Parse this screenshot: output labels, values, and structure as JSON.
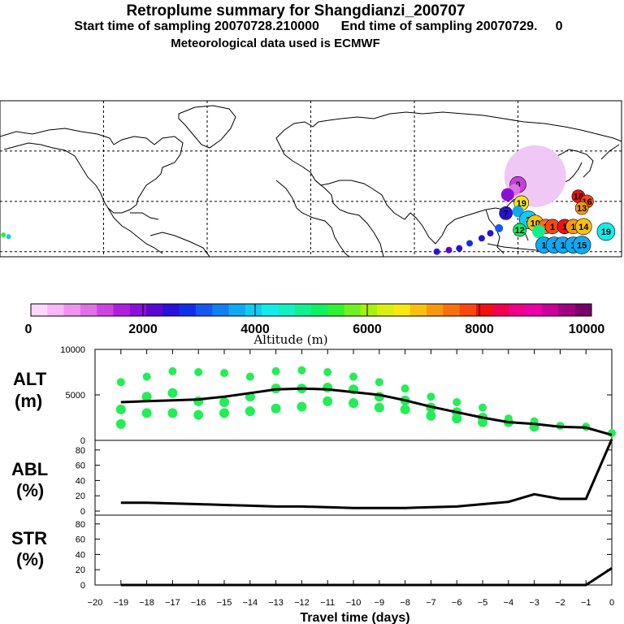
{
  "header": {
    "title": "Retroplume summary for Shangdianzi_200707",
    "line2": "Start time of sampling 20070728.210000      End time of sampling 20070729.     0",
    "line3": "Meteorological data used is ECMWF"
  },
  "colorbar": {
    "ticks": [
      "0",
      "2000",
      "4000",
      "6000",
      "8000",
      "10000"
    ],
    "label": "Altitude (m)",
    "colors": [
      "#fbd8fb",
      "#f6b8f6",
      "#ee94ee",
      "#e070e8",
      "#cc44e0",
      "#b020dc",
      "#8a10d8",
      "#5a08d0",
      "#2a10d8",
      "#1030e8",
      "#1458f0",
      "#1080f0",
      "#10a8f0",
      "#10ccf0",
      "#10ecec",
      "#10f0c0",
      "#10f090",
      "#10f060",
      "#30f030",
      "#70f020",
      "#a8f010",
      "#d8f010",
      "#f8e810",
      "#f8c010",
      "#f89810",
      "#f87010",
      "#f84810",
      "#f01010",
      "#f00050",
      "#f00088",
      "#e800a8",
      "#c80098",
      "#a00080",
      "#780068"
    ]
  },
  "map": {
    "circles": [
      {
        "lon": 130,
        "lat": 45,
        "r": 38,
        "color": "#f0c8f6",
        "label": ""
      },
      {
        "lon": 120,
        "lat": 40,
        "r": 10,
        "color": "#c83ee0",
        "label": "0"
      },
      {
        "lon": 118,
        "lat": 37,
        "r": 7,
        "color": "#e070e8",
        "label": ""
      },
      {
        "lon": 114,
        "lat": 34,
        "r": 8,
        "color": "#8a10d8",
        "label": ""
      },
      {
        "lon": 122,
        "lat": 29,
        "r": 9,
        "color": "#f8e810",
        "label": "19"
      },
      {
        "lon": 155,
        "lat": 33,
        "r": 8,
        "color": "#f01010",
        "label": "18"
      },
      {
        "lon": 160,
        "lat": 30,
        "r": 8,
        "color": "#f84810",
        "label": "16"
      },
      {
        "lon": 157,
        "lat": 26,
        "r": 8,
        "color": "#f89810",
        "label": "13"
      },
      {
        "lon": 113,
        "lat": 23,
        "r": 8,
        "color": "#2a10d8",
        "label": "7"
      },
      {
        "lon": 120,
        "lat": 24,
        "r": 7,
        "color": "#10a8f0",
        "label": ""
      },
      {
        "lon": 126,
        "lat": 19,
        "r": 11,
        "color": "#10ccf0",
        "label": "3"
      },
      {
        "lon": 130,
        "lat": 17,
        "r": 10,
        "color": "#f8c010",
        "label": "10"
      },
      {
        "lon": 136,
        "lat": 15,
        "r": 9,
        "color": "#f87010",
        "label": "1"
      },
      {
        "lon": 140,
        "lat": 15,
        "r": 9,
        "color": "#f84810",
        "label": "1"
      },
      {
        "lon": 147,
        "lat": 15,
        "r": 9,
        "color": "#f01010",
        "label": "1"
      },
      {
        "lon": 152,
        "lat": 15,
        "r": 9,
        "color": "#f89810",
        "label": "1"
      },
      {
        "lon": 158,
        "lat": 15,
        "r": 10,
        "color": "#f8c010",
        "label": "14"
      },
      {
        "lon": 171,
        "lat": 12,
        "r": 11,
        "color": "#10ecec",
        "label": "19"
      },
      {
        "lon": 121,
        "lat": 13,
        "r": 8,
        "color": "#10f060",
        "label": "12"
      },
      {
        "lon": 132,
        "lat": 12,
        "r": 8,
        "color": "#10f090",
        "label": ""
      },
      {
        "lon": 135,
        "lat": 4,
        "r": 10,
        "color": "#10a8f0",
        "label": "1"
      },
      {
        "lon": 141,
        "lat": 4,
        "r": 10,
        "color": "#10a8f0",
        "label": "1"
      },
      {
        "lon": 146,
        "lat": 4,
        "r": 10,
        "color": "#10a8f0",
        "label": "1"
      },
      {
        "lon": 152,
        "lat": 4,
        "r": 10,
        "color": "#10a8f0",
        "label": "1"
      },
      {
        "lon": 157,
        "lat": 4,
        "r": 11,
        "color": "#10a8f0",
        "label": "15"
      },
      {
        "lon": 109,
        "lat": 14,
        "r": 5,
        "color": "#1458f0",
        "label": ""
      },
      {
        "lon": 104,
        "lat": 11,
        "r": 4,
        "color": "#2a10d8",
        "label": ""
      },
      {
        "lon": 99,
        "lat": 8,
        "r": 4,
        "color": "#2a10d8",
        "label": ""
      },
      {
        "lon": 92,
        "lat": 5,
        "r": 4,
        "color": "#1030e8",
        "label": ""
      },
      {
        "lon": 86,
        "lat": 2,
        "r": 4,
        "color": "#2a10d8",
        "label": ""
      },
      {
        "lon": 80,
        "lat": 1,
        "r": 4,
        "color": "#5a08d0",
        "label": ""
      },
      {
        "lon": 73,
        "lat": 0,
        "r": 4,
        "color": "#2a10d8",
        "label": ""
      },
      {
        "lon": -175,
        "lat": 9,
        "r": 3,
        "color": "#10ccf0",
        "label": ""
      },
      {
        "lon": -178,
        "lat": 10,
        "r": 3,
        "color": "#30f030",
        "label": ""
      }
    ]
  },
  "chart_data": [
    {
      "type": "line+scatter",
      "panel_label": "ALT",
      "panel_unit": "(m)",
      "ylim": [
        0,
        10000
      ],
      "y_ticks": [
        "0",
        "5000",
        "10000"
      ],
      "x": [
        -19,
        -18,
        -17,
        -16,
        -15,
        -14,
        -13,
        -12,
        -11,
        -10,
        -9,
        -8,
        -7,
        -6,
        -5,
        -4,
        -3,
        -2,
        -1,
        0
      ],
      "mean_altitude": [
        4200,
        4300,
        4400,
        4500,
        4800,
        5200,
        5600,
        5700,
        5600,
        5300,
        5000,
        4400,
        3700,
        3100,
        2500,
        2000,
        1800,
        1500,
        1400,
        600
      ],
      "cluster_altitudes": [
        [
          6400,
          3400,
          1800
        ],
        [
          7000,
          4800,
          3000
        ],
        [
          7600,
          5200,
          3000
        ],
        [
          7500,
          4300,
          2800
        ],
        [
          7400,
          4200,
          3000
        ],
        [
          7000,
          4800,
          3200
        ],
        [
          7600,
          5700,
          3500
        ],
        [
          7700,
          5700,
          3700
        ],
        [
          7500,
          5800,
          4300
        ],
        [
          7000,
          5600,
          4100
        ],
        [
          6400,
          4800,
          3600
        ],
        [
          5700,
          4400,
          3400
        ],
        [
          4800,
          3600,
          2700
        ],
        [
          4200,
          3100,
          2400
        ],
        [
          3600,
          2500,
          2000
        ],
        [
          2400,
          2000
        ],
        [
          2100,
          1500
        ],
        [
          1600
        ],
        [
          1500
        ],
        [
          800
        ]
      ]
    },
    {
      "type": "line",
      "panel_label": "ABL",
      "panel_unit": "(%)",
      "ylim": [
        0,
        100
      ],
      "y_ticks": [
        "0",
        "20",
        "40",
        "60",
        "80"
      ],
      "x": [
        -19,
        -18,
        -17,
        -16,
        -15,
        -14,
        -13,
        -12,
        -11,
        -10,
        -9,
        -8,
        -7,
        -6,
        -5,
        -4,
        -3,
        -2,
        -1,
        0
      ],
      "values": [
        11,
        11,
        10,
        9,
        8,
        7,
        6,
        6,
        5,
        4,
        4,
        4,
        5,
        6,
        9,
        12,
        22,
        16,
        16,
        94
      ]
    },
    {
      "type": "line",
      "panel_label": "STR",
      "panel_unit": "(%)",
      "ylim": [
        0,
        100
      ],
      "y_ticks": [
        "0",
        "20",
        "40",
        "60",
        "80"
      ],
      "x": [
        -19,
        -18,
        -17,
        -16,
        -15,
        -14,
        -13,
        -12,
        -11,
        -10,
        -9,
        -8,
        -7,
        -6,
        -5,
        -4,
        -3,
        -2,
        -1,
        0
      ],
      "values": [
        0,
        0,
        0,
        0,
        0,
        0,
        0,
        0,
        0,
        0,
        0,
        0,
        0,
        0,
        0,
        0,
        0,
        0,
        0,
        22
      ]
    }
  ],
  "xaxis": {
    "tick_labels": [
      "−20",
      "−19",
      "−18",
      "−17",
      "−16",
      "−15",
      "−14",
      "−13",
      "−12",
      "−11",
      "−10",
      "−9",
      "−8",
      "−7",
      "−6",
      "−5",
      "−4",
      "−3",
      "−2",
      "−1",
      "0"
    ],
    "label": "Travel time (days)"
  }
}
